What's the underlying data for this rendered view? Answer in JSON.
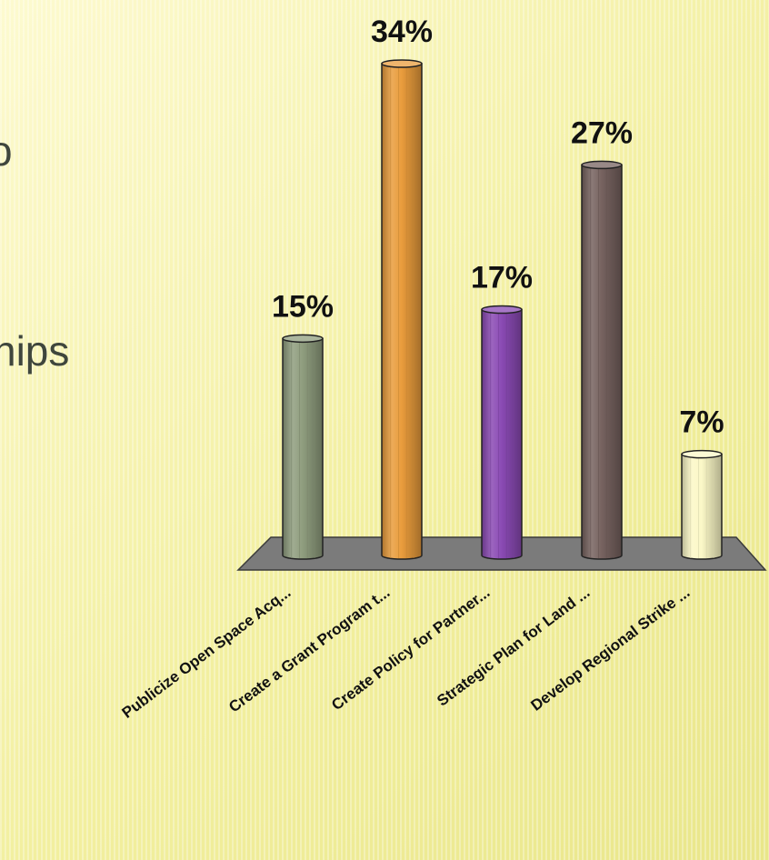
{
  "slide": {
    "text_fragment_1": "o",
    "text_fragment_2": "hips"
  },
  "chart_data": {
    "type": "bar",
    "title": "",
    "xlabel": "",
    "ylabel": "",
    "ylim": [
      0,
      40
    ],
    "grid": false,
    "legend": "none",
    "style": "3d-cylinder",
    "categories": [
      "Publicize Open Space Acq...",
      "Create a Grant Program t...",
      "Create Policy for Partner...",
      "Strategic Plan for Land ...",
      "Develop Regional Strike ..."
    ],
    "values": [
      15,
      34,
      17,
      27,
      7
    ],
    "value_labels": [
      "15%",
      "34%",
      "17%",
      "27%",
      "7%"
    ],
    "colors": [
      "#8f9d7e",
      "#e99c3c",
      "#8a4ab4",
      "#76625f",
      "#fbf8c7"
    ],
    "floor_color": "#7b7b7b"
  }
}
